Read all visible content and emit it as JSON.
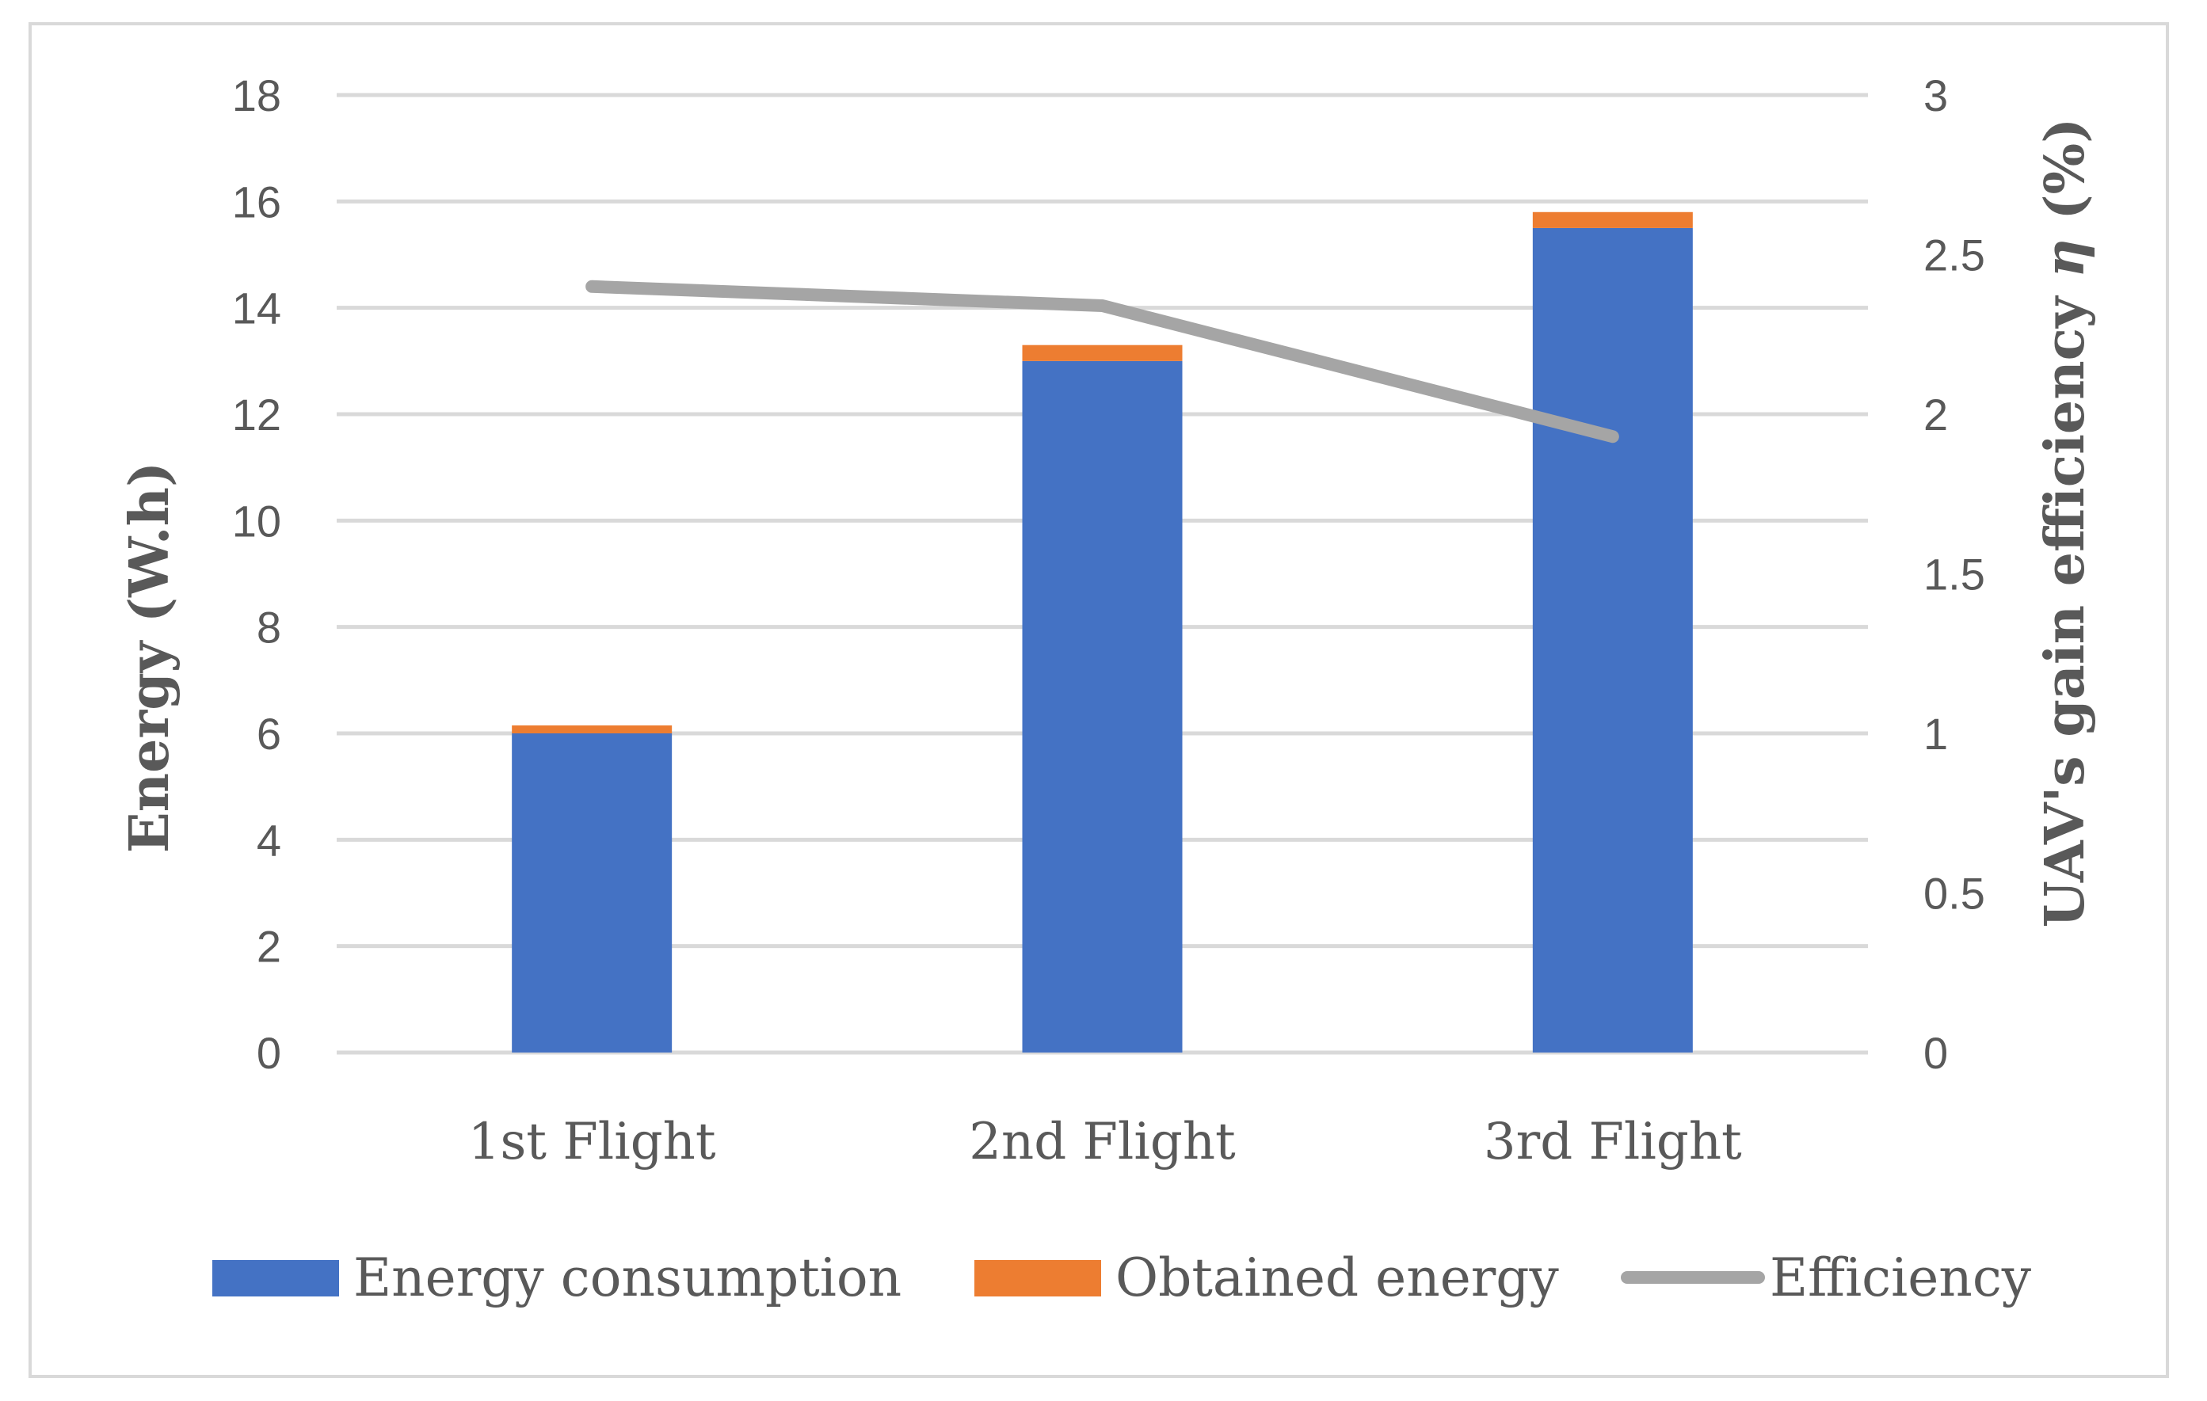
{
  "chart_data": {
    "type": "bar",
    "stacked": true,
    "categories": [
      "1st Flight",
      "2nd Flight",
      "3rd Flight"
    ],
    "series": [
      {
        "name": "Energy consumption",
        "type": "bar",
        "axis": "left",
        "values": [
          6.0,
          13.0,
          15.5
        ],
        "color": "#4472c4"
      },
      {
        "name": "Obtained energy",
        "type": "bar",
        "axis": "left",
        "values": [
          0.15,
          0.3,
          0.3
        ],
        "color": "#ed7d31"
      },
      {
        "name": "Efficiency",
        "type": "line",
        "axis": "right",
        "values": [
          2.4,
          2.34,
          1.93
        ],
        "color": "#a5a5a5"
      }
    ],
    "ylabel": "Energy (W.h)",
    "y2label": "UAV's gain efficiency η (%)",
    "ylim": [
      0,
      18
    ],
    "y2lim": [
      0,
      3
    ],
    "yticks": [
      "0",
      "2",
      "4",
      "6",
      "8",
      "10",
      "12",
      "14",
      "16",
      "18"
    ],
    "y2ticks": [
      "0",
      "0.5",
      "1",
      "1.5",
      "2",
      "2.5",
      "3"
    ],
    "grid": true,
    "legend": "bottom"
  }
}
